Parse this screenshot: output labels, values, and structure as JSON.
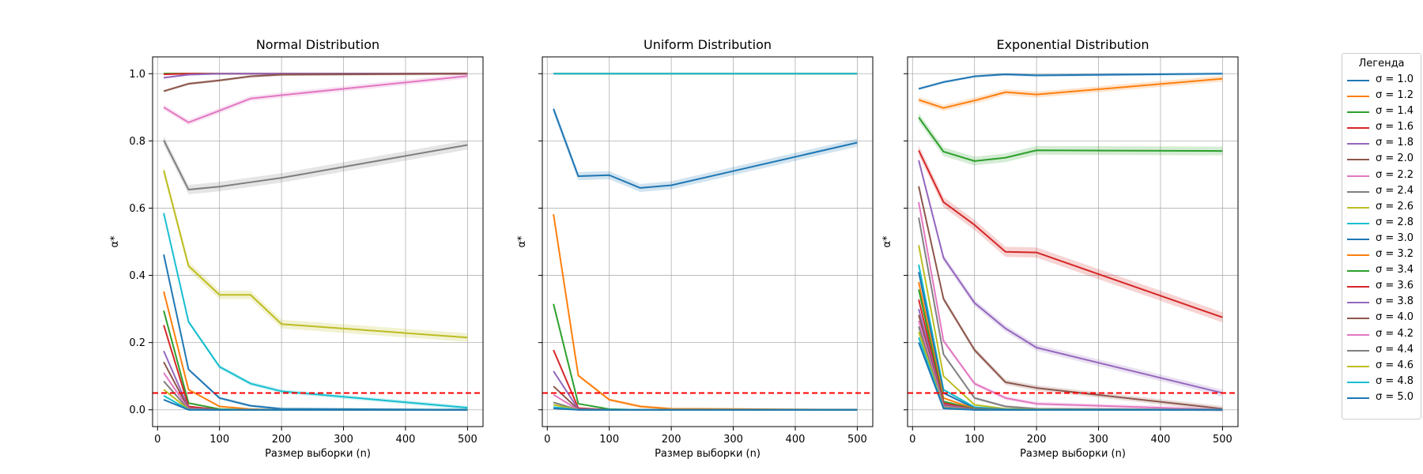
{
  "figure": {
    "legend": {
      "title": "Легенда",
      "placement": "right, outside plots",
      "entries": [
        {
          "label": "σ = 1.0",
          "color": "#1f77b4"
        },
        {
          "label": "σ = 1.2",
          "color": "#ff7f0e"
        },
        {
          "label": "σ = 1.4",
          "color": "#2ca02c"
        },
        {
          "label": "σ = 1.6",
          "color": "#d62728"
        },
        {
          "label": "σ = 1.8",
          "color": "#9467bd"
        },
        {
          "label": "σ = 2.0",
          "color": "#8c564b"
        },
        {
          "label": "σ = 2.2",
          "color": "#e377c2"
        },
        {
          "label": "σ = 2.4",
          "color": "#7f7f7f"
        },
        {
          "label": "σ = 2.6",
          "color": "#bcbd22"
        },
        {
          "label": "σ = 2.8",
          "color": "#17becf"
        },
        {
          "label": "σ = 3.0",
          "color": "#1f77b4"
        },
        {
          "label": "σ = 3.2",
          "color": "#ff7f0e"
        },
        {
          "label": "σ = 3.4",
          "color": "#2ca02c"
        },
        {
          "label": "σ = 3.6",
          "color": "#d62728"
        },
        {
          "label": "σ = 3.8",
          "color": "#9467bd"
        },
        {
          "label": "σ = 4.0",
          "color": "#8c564b"
        },
        {
          "label": "σ = 4.2",
          "color": "#e377c2"
        },
        {
          "label": "σ = 4.4",
          "color": "#7f7f7f"
        },
        {
          "label": "σ = 4.6",
          "color": "#bcbd22"
        },
        {
          "label": "σ = 4.8",
          "color": "#17becf"
        },
        {
          "label": "σ = 5.0",
          "color": "#1f77b4"
        }
      ]
    },
    "reference_line_color": "#ff0000",
    "grid_color": "#b0b0b0"
  },
  "chart_data": [
    {
      "type": "line",
      "title": "Normal Distribution",
      "xlabel": "Размер выборки (n)",
      "ylabel": "α*",
      "xlim": [
        -8,
        525
      ],
      "ylim": [
        -0.05,
        1.05
      ],
      "xticks": [
        0,
        100,
        200,
        300,
        400,
        500
      ],
      "xtick_labels": [
        "0",
        "100",
        "200",
        "300",
        "400",
        "500"
      ],
      "yticks": [
        0.0,
        0.2,
        0.4,
        0.6,
        0.8,
        1.0
      ],
      "ytick_labels": [
        "0.0",
        "0.2",
        "0.4",
        "0.6",
        "0.8",
        "1.0"
      ],
      "grid": true,
      "reference_line": 0.05,
      "x": [
        10,
        50,
        100,
        150,
        200,
        500
      ],
      "series": [
        {
          "name": "σ = 1.0",
          "values": [
            1.0,
            1.0,
            1.0,
            1.0,
            1.0,
            1.0
          ],
          "band": 0.002
        },
        {
          "name": "σ = 1.2",
          "values": [
            1.0,
            1.0,
            1.0,
            1.0,
            1.0,
            1.0
          ],
          "band": 0.002
        },
        {
          "name": "σ = 1.4",
          "values": [
            1.0,
            1.0,
            1.0,
            1.0,
            1.0,
            1.0
          ],
          "band": 0.002
        },
        {
          "name": "σ = 1.6",
          "values": [
            0.998,
            1.0,
            1.0,
            1.0,
            1.0,
            1.0
          ],
          "band": 0.002
        },
        {
          "name": "σ = 1.8",
          "values": [
            0.988,
            0.997,
            1.0,
            1.0,
            1.0,
            1.0
          ],
          "band": 0.003
        },
        {
          "name": "σ = 2.0",
          "values": [
            0.948,
            0.97,
            0.98,
            0.992,
            0.997,
            1.0
          ],
          "band": 0.004
        },
        {
          "name": "σ = 2.2",
          "values": [
            0.9,
            0.855,
            0.89,
            0.926,
            0.936,
            0.993
          ],
          "band": 0.008
        },
        {
          "name": "σ = 2.4",
          "values": [
            0.802,
            0.655,
            0.664,
            0.677,
            0.69,
            0.788
          ],
          "band": 0.014
        },
        {
          "name": "σ = 2.6",
          "values": [
            0.712,
            0.428,
            0.342,
            0.342,
            0.255,
            0.215
          ],
          "band": 0.013
        },
        {
          "name": "σ = 2.8",
          "values": [
            0.585,
            0.262,
            0.128,
            0.078,
            0.055,
            0.006
          ],
          "band": 0.006
        },
        {
          "name": "σ = 3.0",
          "values": [
            0.462,
            0.12,
            0.035,
            0.012,
            0.003,
            0.0
          ],
          "band": 0.004
        },
        {
          "name": "σ = 3.2",
          "values": [
            0.352,
            0.06,
            0.01,
            0.002,
            0.0,
            0.0
          ],
          "band": 0.003
        },
        {
          "name": "σ = 3.4",
          "values": [
            0.295,
            0.02,
            0.002,
            0.0,
            0.0,
            0.0
          ],
          "band": 0.002
        },
        {
          "name": "σ = 3.6",
          "values": [
            0.252,
            0.01,
            0.0,
            0.0,
            0.0,
            0.0
          ],
          "band": 0.002
        },
        {
          "name": "σ = 3.8",
          "values": [
            0.175,
            0.005,
            0.0,
            0.0,
            0.0,
            0.0
          ],
          "band": 0.002
        },
        {
          "name": "σ = 4.0",
          "values": [
            0.142,
            0.003,
            0.0,
            0.0,
            0.0,
            0.0
          ],
          "band": 0.002
        },
        {
          "name": "σ = 4.2",
          "values": [
            0.11,
            0.002,
            0.0,
            0.0,
            0.0,
            0.0
          ],
          "band": 0.002
        },
        {
          "name": "σ = 4.4",
          "values": [
            0.085,
            0.001,
            0.0,
            0.0,
            0.0,
            0.0
          ],
          "band": 0.002
        },
        {
          "name": "σ = 4.6",
          "values": [
            0.06,
            0.001,
            0.0,
            0.0,
            0.0,
            0.0
          ],
          "band": 0.002
        },
        {
          "name": "σ = 4.8",
          "values": [
            0.042,
            0.0,
            0.0,
            0.0,
            0.0,
            0.0
          ],
          "band": 0.002
        },
        {
          "name": "σ = 5.0",
          "values": [
            0.03,
            0.0,
            0.0,
            0.0,
            0.0,
            0.0
          ],
          "band": 0.002
        }
      ]
    },
    {
      "type": "line",
      "title": "Uniform Distribution",
      "xlabel": "Размер выборки (n)",
      "ylabel": "α*",
      "xlim": [
        -8,
        525
      ],
      "ylim": [
        -0.05,
        1.05
      ],
      "xticks": [
        0,
        100,
        200,
        300,
        400,
        500
      ],
      "xtick_labels": [
        "0",
        "100",
        "200",
        "300",
        "400",
        "500"
      ],
      "yticks": [
        0.0,
        0.2,
        0.4,
        0.6,
        0.8,
        1.0
      ],
      "ytick_labels": [
        "",
        "",
        "",
        "",
        "",
        ""
      ],
      "grid": true,
      "reference_line": 0.05,
      "x": [
        10,
        50,
        100,
        150,
        200,
        500
      ],
      "series": [
        {
          "name": "σ = 1.0",
          "values": [
            1.0,
            1.0,
            1.0,
            1.0,
            1.0,
            1.0
          ],
          "band": 0.002
        },
        {
          "name": "σ = 1.2",
          "values": [
            1.0,
            1.0,
            1.0,
            1.0,
            1.0,
            1.0
          ],
          "band": 0.002
        },
        {
          "name": "σ = 1.4",
          "values": [
            1.0,
            1.0,
            1.0,
            1.0,
            1.0,
            1.0
          ],
          "band": 0.002
        },
        {
          "name": "σ = 1.6",
          "values": [
            1.0,
            1.0,
            1.0,
            1.0,
            1.0,
            1.0
          ],
          "band": 0.002
        },
        {
          "name": "σ = 1.8",
          "values": [
            1.0,
            1.0,
            1.0,
            1.0,
            1.0,
            1.0
          ],
          "band": 0.002
        },
        {
          "name": "σ = 2.0",
          "values": [
            1.0,
            1.0,
            1.0,
            1.0,
            1.0,
            1.0
          ],
          "band": 0.002
        },
        {
          "name": "σ = 2.2",
          "values": [
            1.0,
            1.0,
            1.0,
            1.0,
            1.0,
            1.0
          ],
          "band": 0.002
        },
        {
          "name": "σ = 2.4",
          "values": [
            1.0,
            1.0,
            1.0,
            1.0,
            1.0,
            1.0
          ],
          "band": 0.002
        },
        {
          "name": "σ = 2.6",
          "values": [
            1.0,
            1.0,
            1.0,
            1.0,
            1.0,
            1.0
          ],
          "band": 0.002
        },
        {
          "name": "σ = 2.8",
          "values": [
            1.0,
            1.0,
            1.0,
            1.0,
            1.0,
            1.0
          ],
          "band": 0.002
        },
        {
          "name": "σ = 3.0",
          "values": [
            0.895,
            0.695,
            0.698,
            0.66,
            0.668,
            0.795
          ],
          "band": 0.012
        },
        {
          "name": "σ = 3.2",
          "values": [
            0.582,
            0.102,
            0.03,
            0.01,
            0.003,
            0.0
          ],
          "band": 0.004
        },
        {
          "name": "σ = 3.4",
          "values": [
            0.315,
            0.018,
            0.002,
            0.0,
            0.0,
            0.0
          ],
          "band": 0.002
        },
        {
          "name": "σ = 3.6",
          "values": [
            0.178,
            0.005,
            0.0,
            0.0,
            0.0,
            0.0
          ],
          "band": 0.002
        },
        {
          "name": "σ = 3.8",
          "values": [
            0.115,
            0.002,
            0.0,
            0.0,
            0.0,
            0.0
          ],
          "band": 0.002
        },
        {
          "name": "σ = 4.0",
          "values": [
            0.07,
            0.001,
            0.0,
            0.0,
            0.0,
            0.0
          ],
          "band": 0.002
        },
        {
          "name": "σ = 4.2",
          "values": [
            0.045,
            0.0,
            0.0,
            0.0,
            0.0,
            0.0
          ],
          "band": 0.002
        },
        {
          "name": "σ = 4.4",
          "values": [
            0.022,
            0.0,
            0.0,
            0.0,
            0.0,
            0.0
          ],
          "band": 0.002
        },
        {
          "name": "σ = 4.6",
          "values": [
            0.015,
            0.0,
            0.0,
            0.0,
            0.0,
            0.0
          ],
          "band": 0.002
        },
        {
          "name": "σ = 4.8",
          "values": [
            0.008,
            0.0,
            0.0,
            0.0,
            0.0,
            0.0
          ],
          "band": 0.002
        },
        {
          "name": "σ = 5.0",
          "values": [
            0.004,
            0.0,
            0.0,
            0.0,
            0.0,
            0.0
          ],
          "band": 0.002
        }
      ]
    },
    {
      "type": "line",
      "title": "Exponential Distribution",
      "xlabel": "Размер выборки (n)",
      "ylabel": "α*",
      "xlim": [
        -8,
        525
      ],
      "ylim": [
        -0.05,
        1.05
      ],
      "xticks": [
        0,
        100,
        200,
        300,
        400,
        500
      ],
      "xtick_labels": [
        "0",
        "100",
        "200",
        "300",
        "400",
        "500"
      ],
      "yticks": [
        0.0,
        0.2,
        0.4,
        0.6,
        0.8,
        1.0
      ],
      "ytick_labels": [
        "",
        "",
        "",
        "",
        "",
        ""
      ],
      "grid": true,
      "reference_line": 0.05,
      "x": [
        10,
        50,
        100,
        150,
        200,
        500
      ],
      "series": [
        {
          "name": "σ = 1.0",
          "values": [
            0.955,
            0.975,
            0.992,
            0.998,
            0.995,
            1.0
          ],
          "band": 0.004
        },
        {
          "name": "σ = 1.2",
          "values": [
            0.922,
            0.898,
            0.92,
            0.945,
            0.938,
            0.985
          ],
          "band": 0.009
        },
        {
          "name": "σ = 1.4",
          "values": [
            0.87,
            0.768,
            0.74,
            0.75,
            0.772,
            0.77
          ],
          "band": 0.013
        },
        {
          "name": "σ = 1.6",
          "values": [
            0.772,
            0.618,
            0.55,
            0.47,
            0.468,
            0.275
          ],
          "band": 0.015
        },
        {
          "name": "σ = 1.8",
          "values": [
            0.742,
            0.452,
            0.318,
            0.242,
            0.185,
            0.05
          ],
          "band": 0.01
        },
        {
          "name": "σ = 2.0",
          "values": [
            0.665,
            0.33,
            0.178,
            0.082,
            0.065,
            0.003
          ],
          "band": 0.008
        },
        {
          "name": "σ = 2.2",
          "values": [
            0.618,
            0.205,
            0.078,
            0.035,
            0.018,
            0.0
          ],
          "band": 0.006
        },
        {
          "name": "σ = 2.4",
          "values": [
            0.572,
            0.165,
            0.035,
            0.01,
            0.003,
            0.0
          ],
          "band": 0.004
        },
        {
          "name": "σ = 2.6",
          "values": [
            0.49,
            0.1,
            0.015,
            0.003,
            0.001,
            0.0
          ],
          "band": 0.003
        },
        {
          "name": "σ = 2.8",
          "values": [
            0.432,
            0.06,
            0.008,
            0.001,
            0.0,
            0.0
          ],
          "band": 0.003
        },
        {
          "name": "σ = 3.0",
          "values": [
            0.41,
            0.05,
            0.005,
            0.001,
            0.0,
            0.0
          ],
          "band": 0.003
        },
        {
          "name": "σ = 3.2",
          "values": [
            0.38,
            0.035,
            0.003,
            0.0,
            0.0,
            0.0
          ],
          "band": 0.003
        },
        {
          "name": "σ = 3.4",
          "values": [
            0.358,
            0.025,
            0.002,
            0.0,
            0.0,
            0.0
          ],
          "band": 0.002
        },
        {
          "name": "σ = 3.6",
          "values": [
            0.328,
            0.02,
            0.001,
            0.0,
            0.0,
            0.0
          ],
          "band": 0.002
        },
        {
          "name": "σ = 3.8",
          "values": [
            0.3,
            0.015,
            0.001,
            0.0,
            0.0,
            0.0
          ],
          "band": 0.002
        },
        {
          "name": "σ = 4.0",
          "values": [
            0.282,
            0.012,
            0.0,
            0.0,
            0.0,
            0.0
          ],
          "band": 0.002
        },
        {
          "name": "σ = 4.2",
          "values": [
            0.265,
            0.01,
            0.0,
            0.0,
            0.0,
            0.0
          ],
          "band": 0.002
        },
        {
          "name": "σ = 4.4",
          "values": [
            0.248,
            0.008,
            0.0,
            0.0,
            0.0,
            0.0
          ],
          "band": 0.002
        },
        {
          "name": "σ = 4.6",
          "values": [
            0.232,
            0.006,
            0.0,
            0.0,
            0.0,
            0.0
          ],
          "band": 0.002
        },
        {
          "name": "σ = 4.8",
          "values": [
            0.215,
            0.005,
            0.0,
            0.0,
            0.0,
            0.0
          ],
          "band": 0.002
        },
        {
          "name": "σ = 5.0",
          "values": [
            0.2,
            0.004,
            0.0,
            0.0,
            0.0,
            0.0
          ],
          "band": 0.002
        }
      ]
    }
  ]
}
